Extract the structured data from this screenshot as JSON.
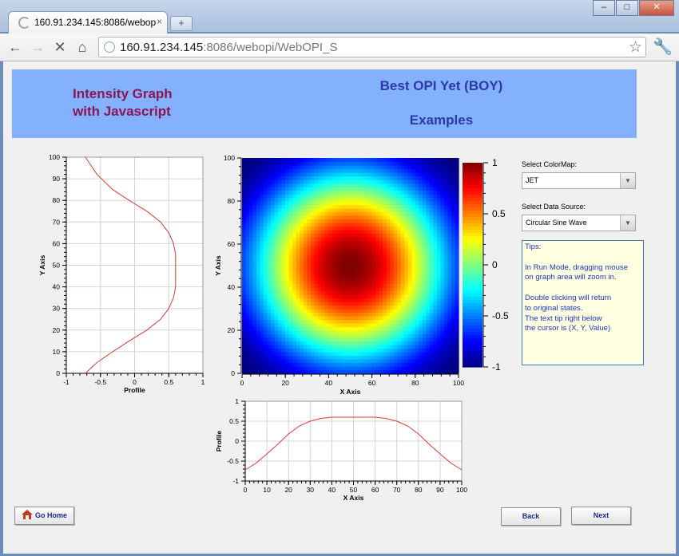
{
  "browser": {
    "tab_title": "160.91.234.145:8086/webop",
    "tab_close": "×",
    "new_tab": "+",
    "url_host": "160.91.234.145",
    "url_rest": ":8086/webopi/WebOPI_S",
    "window_buttons": [
      "–",
      "□",
      "✕"
    ]
  },
  "banner": {
    "left_line1": "Intensity Graph",
    "left_line2": "with Javascript",
    "right_line1": "Best OPI Yet (BOY)",
    "right_line2": "Examples",
    "color": "#84b1fd"
  },
  "controls": {
    "colormap_label": "Select ColorMap:",
    "colormap_value": "JET",
    "datasource_label": "Select Data Source:",
    "datasource_value": "Circular Sine Wave"
  },
  "tips": {
    "lines": [
      "Tips:",
      "",
      "In Run Mode, dragging mouse",
      "on graph area will zoom in.",
      "",
      "Double clicking will return",
      "to original states.",
      "The text tip right below",
      "the cursor is (X, Y, Value)"
    ]
  },
  "buttons": {
    "go_home": "Go Home",
    "back": "Back",
    "next": "Next"
  },
  "chart_data": [
    {
      "type": "line",
      "name": "left-profile",
      "xlabel": "Profile",
      "ylabel": "Y Axis",
      "xlim": [
        -1,
        1
      ],
      "ylim": [
        0,
        100
      ],
      "x_ticks": [
        "-1",
        "-0.5",
        "0",
        "0.5",
        "1"
      ],
      "y_ticks": [
        "0",
        "10",
        "20",
        "30",
        "40",
        "50",
        "60",
        "70",
        "80",
        "90",
        "100"
      ],
      "grid": true,
      "series": [
        {
          "color": "#d23b3b",
          "x": [
            -0.72,
            -0.55,
            -0.32,
            -0.08,
            0.18,
            0.38,
            0.5,
            0.57,
            0.6,
            0.6,
            0.6,
            0.57,
            0.5,
            0.38,
            0.18,
            -0.08,
            -0.32,
            -0.55,
            -0.72
          ],
          "y": [
            0,
            5,
            10,
            15,
            20,
            25,
            30,
            35,
            40,
            45,
            55,
            60,
            65,
            70,
            75,
            80,
            85,
            92,
            100
          ]
        }
      ]
    },
    {
      "type": "heatmap",
      "name": "intensity-graph",
      "xlabel": "X Axis",
      "ylabel": "Y Axis",
      "xlim": [
        0,
        100
      ],
      "ylim": [
        0,
        100
      ],
      "x_ticks": [
        "0",
        "20",
        "40",
        "60",
        "80",
        "100"
      ],
      "y_ticks": [
        "0",
        "20",
        "40",
        "60",
        "80",
        "100"
      ],
      "colormap": "JET",
      "colorbar_ticks": [
        "-1",
        "-0.5",
        "0",
        "0.5",
        "1"
      ],
      "center": [
        50,
        50
      ],
      "zlim": [
        -1,
        1
      ]
    },
    {
      "type": "line",
      "name": "bottom-profile",
      "xlabel": "X Axis",
      "ylabel": "Profile",
      "xlim": [
        0,
        100
      ],
      "ylim": [
        -1,
        1
      ],
      "x_ticks": [
        "0",
        "10",
        "20",
        "30",
        "40",
        "50",
        "60",
        "70",
        "80",
        "90",
        "100"
      ],
      "y_ticks": [
        "-1",
        "-0.5",
        "0",
        "0.5",
        "1"
      ],
      "grid": true,
      "series": [
        {
          "color": "#d23b3b",
          "x": [
            0,
            5,
            10,
            15,
            20,
            25,
            30,
            35,
            40,
            45,
            55,
            60,
            65,
            70,
            75,
            80,
            85,
            90,
            95,
            100
          ],
          "y": [
            -0.72,
            -0.55,
            -0.32,
            -0.08,
            0.18,
            0.38,
            0.5,
            0.57,
            0.6,
            0.6,
            0.6,
            0.6,
            0.57,
            0.5,
            0.38,
            0.18,
            -0.08,
            -0.32,
            -0.55,
            -0.72
          ]
        }
      ]
    }
  ]
}
